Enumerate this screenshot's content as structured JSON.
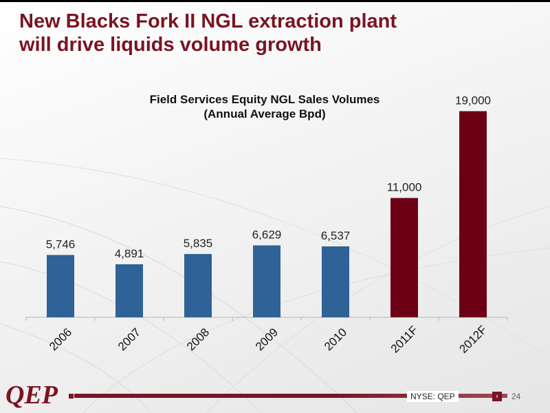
{
  "slide": {
    "title_line1": "New Blacks Fork II NGL extraction plant",
    "title_line2": "will drive liquids volume growth",
    "footer_tag": "NYSE: QEP",
    "page_number": "24",
    "logo_text": "QEP"
  },
  "chart_data": {
    "type": "bar",
    "title_line1": "Field Services Equity NGL Sales Volumes",
    "title_line2": "(Annual Average Bpd)",
    "categories": [
      "2006",
      "2007",
      "2008",
      "2009",
      "2010",
      "2011F",
      "2012F"
    ],
    "values": [
      5746,
      4891,
      5835,
      6629,
      6537,
      11000,
      19000
    ],
    "value_labels": [
      "5,746",
      "4,891",
      "5,835",
      "6,629",
      "6,537",
      "11,000",
      "19,000"
    ],
    "ylim": [
      0,
      21000
    ],
    "grid": false,
    "bar_colors": [
      "#2f6296",
      "#2f6296",
      "#2f6296",
      "#2f6296",
      "#2f6296",
      "#6e0016",
      "#6e0016"
    ]
  }
}
